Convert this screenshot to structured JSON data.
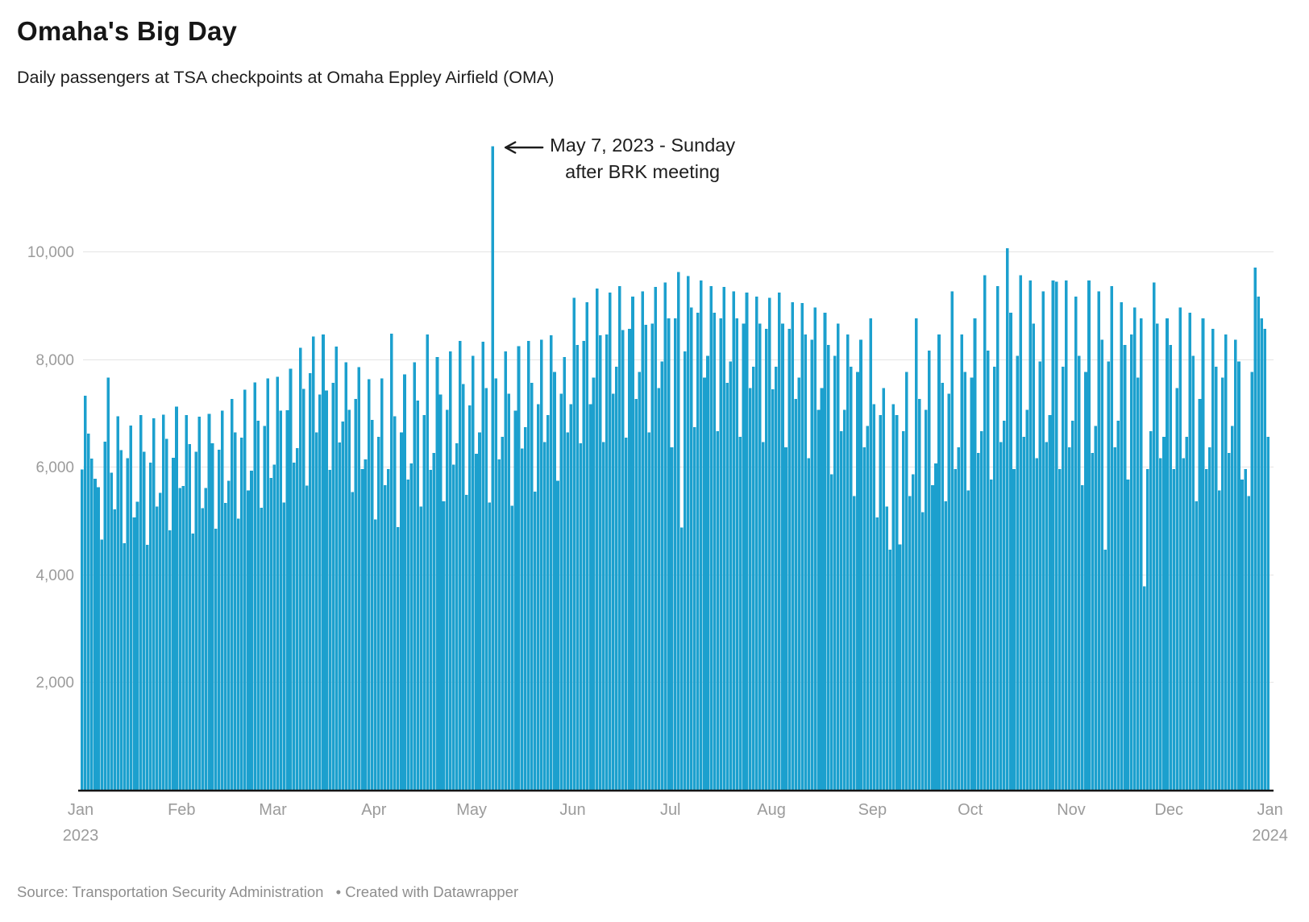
{
  "header": {
    "title": "Omaha's Big Day",
    "subtitle": "Daily passengers at TSA checkpoints at Omaha Eppley Airfield (OMA)"
  },
  "annotation": {
    "line1": "May 7, 2023 - Sunday",
    "line2": "after BRK meeting",
    "target_date": "2023-05-07",
    "day_index": 126
  },
  "footer": {
    "source": "Source: Transportation Security Administration",
    "attribution": "• Created with Datawrapper"
  },
  "colors": {
    "bar": "#1CA0CE",
    "grid": "#e4e4e4",
    "axis_text": "#9b9b9b",
    "baseline": "#161616",
    "annotation": "#1d1d1d"
  },
  "chart_data": {
    "type": "bar",
    "title": "Omaha's Big Day",
    "xlabel": "",
    "ylabel": "Daily passengers",
    "x_start_date": "2023-01-01",
    "x_end_date": "2023-12-31",
    "ylim": [
      0,
      12100
    ],
    "grid": "horizontal",
    "legend": "none",
    "y_ticks": [
      {
        "value": 2000,
        "label": "2,000"
      },
      {
        "value": 4000,
        "label": "4,000"
      },
      {
        "value": 6000,
        "label": "6,000"
      },
      {
        "value": 8000,
        "label": "8,000"
      },
      {
        "value": 10000,
        "label": "10,000"
      }
    ],
    "x_ticks": [
      {
        "label": "Jan",
        "sublabel": "2023",
        "day": 0
      },
      {
        "label": "Feb",
        "day": 31
      },
      {
        "label": "Mar",
        "day": 59
      },
      {
        "label": "Apr",
        "day": 90
      },
      {
        "label": "May",
        "day": 120
      },
      {
        "label": "Jun",
        "day": 151
      },
      {
        "label": "Jul",
        "day": 181
      },
      {
        "label": "Aug",
        "day": 212
      },
      {
        "label": "Sep",
        "day": 243
      },
      {
        "label": "Oct",
        "day": 273
      },
      {
        "label": "Nov",
        "day": 304
      },
      {
        "label": "Dec",
        "day": 334
      },
      {
        "label": "Jan",
        "sublabel": "2024",
        "day": 365
      }
    ],
    "highlight": {
      "date": "2023-05-07",
      "day_index": 126,
      "value": 11950
    },
    "values": [
      5950,
      7320,
      6620,
      6150,
      5780,
      5620,
      4650,
      6470,
      7660,
      5890,
      5210,
      6940,
      6310,
      4580,
      6160,
      6770,
      5060,
      5350,
      6960,
      6280,
      4550,
      6080,
      6900,
      5260,
      5520,
      6970,
      6520,
      4820,
      6170,
      7120,
      5610,
      5640,
      6960,
      6420,
      4760,
      6280,
      6930,
      5230,
      5610,
      6980,
      6440,
      4850,
      6320,
      7040,
      5330,
      5740,
      7260,
      6640,
      5040,
      6540,
      7430,
      5560,
      5930,
      7570,
      6860,
      5240,
      6760,
      7640,
      5790,
      6040,
      7670,
      7040,
      5340,
      7050,
      7820,
      6080,
      6350,
      8210,
      7450,
      5650,
      7740,
      8420,
      6640,
      7340,
      8460,
      7420,
      5940,
      7560,
      8230,
      6450,
      6840,
      7940,
      7060,
      5530,
      7260,
      7850,
      5960,
      6140,
      7630,
      6870,
      5020,
      6560,
      7640,
      5660,
      5960,
      8470,
      6940,
      4880,
      6640,
      7720,
      5760,
      6060,
      7940,
      7230,
      5260,
      6960,
      8460,
      5940,
      6260,
      8040,
      7340,
      5360,
      7060,
      8140,
      6040,
      6440,
      8340,
      7540,
      5480,
      7140,
      8060,
      6240,
      6640,
      8320,
      7460,
      5340,
      11950,
      7640,
      6140,
      6560,
      8140,
      7360,
      5280,
      7040,
      8240,
      6340,
      6740,
      8340,
      7560,
      5540,
      7160,
      8360,
      6460,
      6960,
      8440,
      7760,
      5740,
      7360,
      8040,
      6640,
      7160,
      9140,
      8260,
      6440,
      8340,
      9060,
      7160,
      7660,
      9310,
      8440,
      6460,
      8460,
      9240,
      7360,
      7860,
      9360,
      8540,
      6540,
      8560,
      9160,
      7260,
      7760,
      9260,
      8640,
      6640,
      8660,
      9340,
      7460,
      7960,
      9420,
      8760,
      6360,
      8760,
      9620,
      4870,
      8140,
      9540,
      8960,
      6740,
      8860,
      9460,
      7660,
      8060,
      9360,
      8860,
      6660,
      8760,
      9340,
      7560,
      7960,
      9260,
      8760,
      6560,
      8660,
      9240,
      7460,
      7860,
      9160,
      8660,
      6460,
      8560,
      9140,
      7440,
      7860,
      9240,
      8660,
      6360,
      8560,
      9060,
      7260,
      7660,
      9040,
      8460,
      6160,
      8360,
      8960,
      7060,
      7460,
      8860,
      8260,
      5860,
      8060,
      8660,
      6660,
      7060,
      8460,
      7860,
      5460,
      7760,
      8360,
      6360,
      6760,
      8760,
      7160,
      5060,
      6960,
      7460,
      5260,
      4460,
      7160,
      6960,
      4560,
      6660,
      7760,
      5460,
      5860,
      8760,
      7260,
      5160,
      7060,
      8160,
      5660,
      6060,
      8460,
      7560,
      5360,
      7360,
      9260,
      5960,
      6360,
      8460,
      7760,
      5560,
      7660,
      8760,
      6260,
      6660,
      9560,
      8160,
      5760,
      7860,
      9360,
      6460,
      6860,
      10060,
      8860,
      5960,
      8060,
      9560,
      6560,
      7060,
      9460,
      8660,
      6160,
      7960,
      9260,
      6460,
      6960,
      9460,
      9440,
      5960,
      7860,
      9460,
      6360,
      6860,
      9160,
      8060,
      5660,
      7760,
      9460,
      6260,
      6760,
      9260,
      8360,
      4460,
      7960,
      9360,
      6360,
      6860,
      9060,
      8260,
      5760,
      8460,
      8960,
      7660,
      8760,
      3780,
      5960,
      6660,
      9420,
      8660,
      6160,
      6560,
      8760,
      8260,
      5960,
      7460,
      8960,
      6160,
      6560,
      8860,
      8060,
      5360,
      7260,
      8760,
      5960,
      6360,
      8560,
      7860,
      5560,
      7660,
      8460,
      6260,
      6760,
      8360,
      7960,
      5760,
      5960,
      5460,
      7760,
      9700,
      9160,
      8760,
      8560,
      6560
    ]
  }
}
